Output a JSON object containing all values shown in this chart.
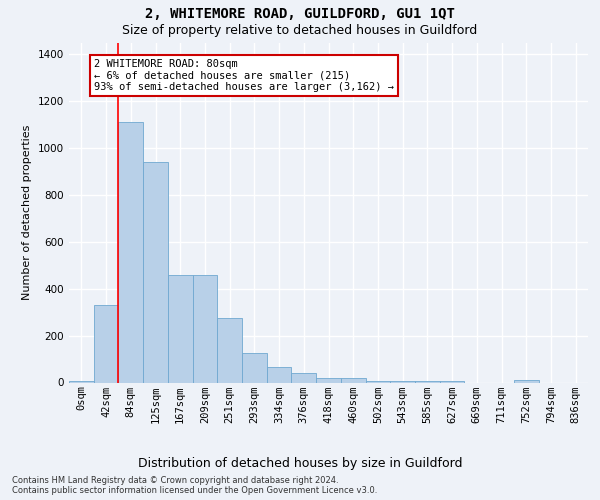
{
  "title": "2, WHITEMORE ROAD, GUILDFORD, GU1 1QT",
  "subtitle": "Size of property relative to detached houses in Guildford",
  "xlabel": "Distribution of detached houses by size in Guildford",
  "ylabel": "Number of detached properties",
  "footer_line1": "Contains HM Land Registry data © Crown copyright and database right 2024.",
  "footer_line2": "Contains public sector information licensed under the Open Government Licence v3.0.",
  "bin_labels": [
    "0sqm",
    "42sqm",
    "84sqm",
    "125sqm",
    "167sqm",
    "209sqm",
    "251sqm",
    "293sqm",
    "334sqm",
    "376sqm",
    "418sqm",
    "460sqm",
    "502sqm",
    "543sqm",
    "585sqm",
    "627sqm",
    "669sqm",
    "711sqm",
    "752sqm",
    "794sqm",
    "836sqm"
  ],
  "bar_values": [
    5,
    330,
    1110,
    940,
    460,
    460,
    275,
    125,
    65,
    40,
    20,
    20,
    8,
    5,
    5,
    5,
    0,
    0,
    10,
    0,
    0
  ],
  "bar_color": "#b8d0e8",
  "bar_edgecolor": "#6fa8d0",
  "annotation_text": "2 WHITEMORE ROAD: 80sqm\n← 6% of detached houses are smaller (215)\n93% of semi-detached houses are larger (3,162) →",
  "annotation_box_facecolor": "#ffffff",
  "annotation_box_edgecolor": "#cc0000",
  "red_line_index": 2,
  "ylim": [
    0,
    1450
  ],
  "yticks": [
    0,
    200,
    400,
    600,
    800,
    1000,
    1200,
    1400
  ],
  "background_color": "#eef2f8",
  "grid_color": "#ffffff",
  "title_fontsize": 10,
  "subtitle_fontsize": 9,
  "ylabel_fontsize": 8,
  "xlabel_fontsize": 9,
  "tick_fontsize": 7.5,
  "footer_fontsize": 6
}
